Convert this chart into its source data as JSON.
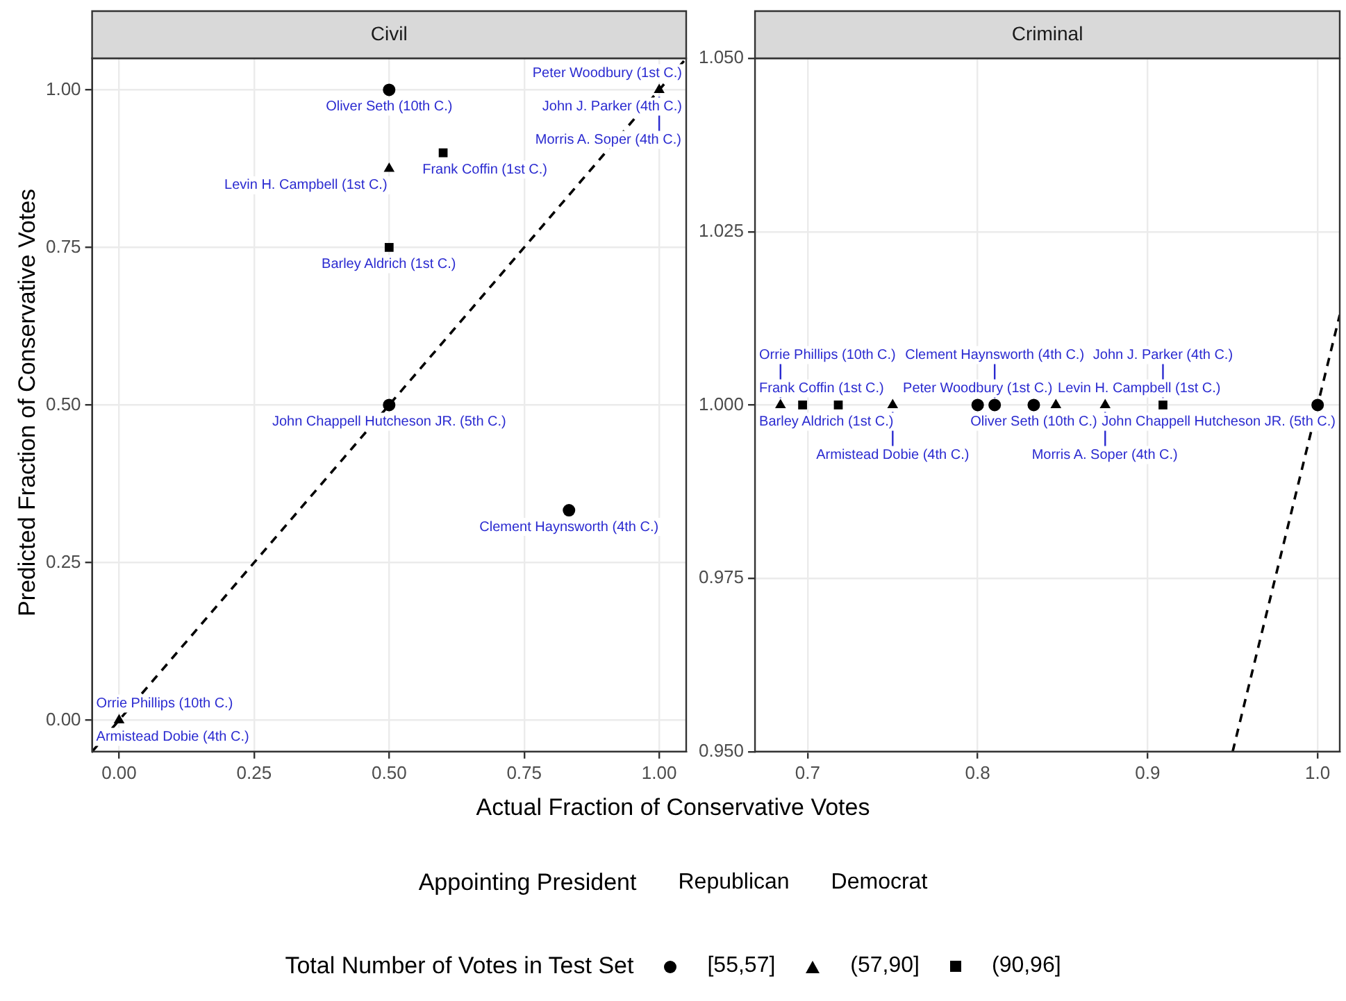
{
  "chart_data": [
    {
      "type": "scatter",
      "title": "Civil",
      "xlabel": "Actual Fraction of Conservative Votes",
      "ylabel": "Predicted Fraction of Conservative Votes",
      "legend_title": "Total Number of Votes in Test Set",
      "legend": "bottom",
      "grid": true,
      "xlim": [
        -0.05,
        1.05
      ],
      "ylim": [
        -0.05,
        1.05
      ],
      "xticks": [
        {
          "value": 0,
          "label": "0.00"
        },
        {
          "value": 0.25,
          "label": "0.25"
        },
        {
          "value": 0.5,
          "label": "0.50"
        },
        {
          "value": 0.75,
          "label": "0.75"
        },
        {
          "value": 1,
          "label": "1.00"
        }
      ],
      "yticks": [
        {
          "value": 0,
          "label": "0.00"
        },
        {
          "value": 0.25,
          "label": "0.25"
        },
        {
          "value": 0.5,
          "label": "0.50"
        },
        {
          "value": 0.75,
          "label": "0.75"
        },
        {
          "value": 1,
          "label": "1.00"
        }
      ],
      "series": [
        {
          "name": "[55,57]",
          "marker": "circle",
          "color": "#000000",
          "x": [
            0.5,
            0.5,
            0.833
          ],
          "values": [
            1,
            0.5,
            0.333
          ]
        },
        {
          "name": "(57,90]",
          "marker": "triangle",
          "color": "#000000",
          "x": [
            1,
            0.5,
            0
          ],
          "values": [
            1,
            0.875,
            0
          ]
        },
        {
          "name": "(90,96]",
          "marker": "square",
          "color": "#000000",
          "x": [
            0.6,
            0.5
          ],
          "values": [
            0.9,
            0.75
          ]
        },
        {
          "type": "line",
          "color": "#000000",
          "line_style": "dashed",
          "marker": "none",
          "x": [
            -0.05,
            1.05
          ],
          "values": [
            -0.05,
            1.05
          ]
        }
      ],
      "annotations": [
        "Appointing President",
        "Republican",
        "Democrat",
        {
          "text": "John J. Parker (4th C.)",
          "x": 1,
          "y": 1
        },
        {
          "text": "Oliver Seth (10th C.)",
          "x": 0.5,
          "y": 1
        },
        {
          "text": "Peter Woodbury (1st C.)",
          "x": 1,
          "y": 1
        },
        {
          "text": "Morris A. Soper (4th C.)",
          "x": 1,
          "y": 1
        },
        {
          "text": "Frank Coffin (1st C.)",
          "x": 0.6,
          "y": 0.9
        },
        {
          "text": "Levin H. Campbell (1st C.)",
          "x": 0.5,
          "y": 0.875
        },
        {
          "text": "Barley Aldrich (1st C.)",
          "x": 0.5,
          "y": 0.75
        },
        {
          "text": "John Chappell Hutcheson JR. (5th C.)",
          "x": 0.5,
          "y": 0.5
        },
        {
          "text": "Clement Haynsworth (4th C.)",
          "x": 0.833,
          "y": 0.333
        },
        {
          "text": "Armistead Dobie (4th C.)",
          "x": 0,
          "y": 0
        },
        {
          "text": "Orrie Phillips (10th C.)",
          "x": 0,
          "y": 0
        }
      ]
    },
    {
      "type": "scatter",
      "title": "Criminal",
      "grid": true,
      "xlim": [
        0.669,
        1.013
      ],
      "ylim": [
        0.95,
        1.05
      ],
      "xticks": [
        0.7,
        0.8,
        0.9,
        {
          "value": 1,
          "label": "1.0"
        }
      ],
      "yticks": [
        {
          "value": 0.95,
          "label": "0.950"
        },
        {
          "value": 0.975,
          "label": "0.975"
        },
        {
          "value": 1,
          "label": "1.000"
        },
        {
          "value": 1.025,
          "label": "1.025"
        },
        {
          "value": 1.05,
          "label": "1.050"
        }
      ],
      "series": [
        {
          "marker": "circle",
          "color": "#000000",
          "x": [
            0.8,
            0.81,
            0.833,
            1
          ],
          "values": [
            1,
            1,
            1,
            1
          ]
        },
        {
          "marker": "triangle",
          "color": "#000000",
          "x": [
            0.684,
            0.75,
            0.846,
            0.875
          ],
          "values": [
            1,
            1,
            1,
            1
          ]
        },
        {
          "marker": "square",
          "color": "#000000",
          "x": [
            0.697,
            0.718,
            0.909
          ],
          "values": [
            1,
            1,
            1
          ]
        },
        {
          "type": "line",
          "color": "#000000",
          "line_style": "dashed",
          "marker": "none",
          "x": [
            0.95,
            1.013
          ],
          "values": [
            0.95,
            1.013
          ]
        }
      ],
      "annotations": [
        {
          "text": "Barley Aldrich (1st C.)",
          "x": 0.697,
          "y": 1
        },
        {
          "text": "Oliver Seth (10th C.)",
          "x": 0.833,
          "y": 1
        },
        {
          "text": "Peter Woodbury (1st C.)",
          "x": 0.8,
          "y": 1
        },
        {
          "text": "Levin H. Campbell (1st C.)",
          "x": 0.846,
          "y": 1
        },
        {
          "text": "John Chappell Hutcheson JR. (5th C.)",
          "x": 1,
          "y": 1
        },
        {
          "text": "Frank Coffin (1st C.)",
          "x": 0.718,
          "y": 1
        },
        {
          "text": "Armistead Dobie (4th C.)",
          "x": 0.75,
          "y": 1
        },
        {
          "text": "Morris A. Soper (4th C.)",
          "x": 0.875,
          "y": 1
        },
        {
          "text": "Orrie Phillips (10th C.)",
          "x": 0.684,
          "y": 1
        },
        {
          "text": "Clement Haynsworth (4th C.)",
          "x": 0.81,
          "y": 1
        },
        {
          "text": "John J. Parker (4th C.)",
          "x": 0.909,
          "y": 1
        }
      ]
    }
  ]
}
